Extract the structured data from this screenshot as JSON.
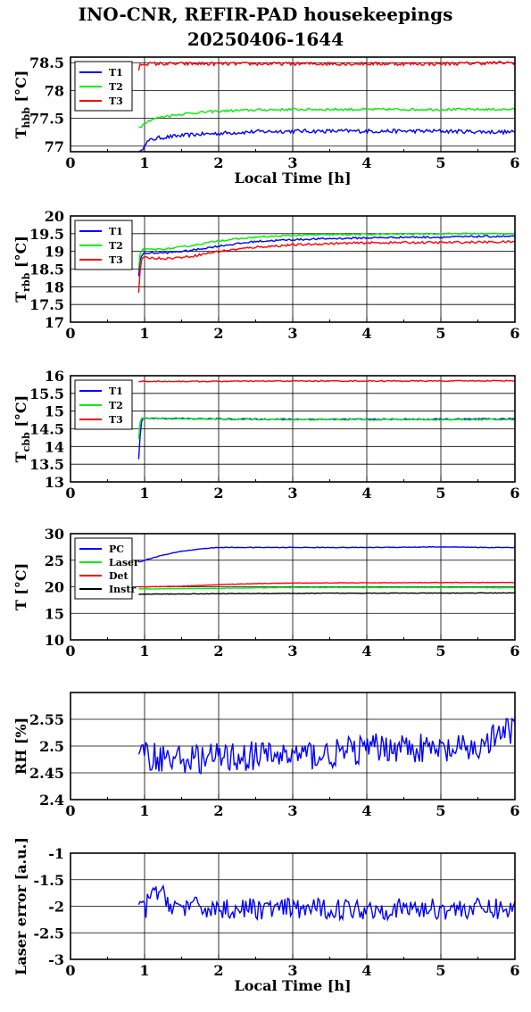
{
  "header": {
    "title_line1": "INO-CNR, REFIR-PAD housekeepings",
    "title_line2": "20250406-1644"
  },
  "chart_data": [
    {
      "type": "line",
      "ylabel": "T",
      "ylabel_sub": "hbb",
      "ylabel_unit": " [°C]",
      "xlabel": "Local Time [h]",
      "xlim": [
        0,
        6
      ],
      "ylim": [
        76.9,
        78.6
      ],
      "yticks": [
        77,
        77.5,
        78,
        78.5
      ],
      "ytick_labels": [
        "77",
        "77.5",
        "78",
        "78.5"
      ],
      "xticks": [
        0,
        1,
        2,
        3,
        4,
        5,
        6
      ],
      "xtick_labels": [
        "0",
        "1",
        "2",
        "3",
        "4",
        "5",
        "6"
      ],
      "grid": true,
      "legend_position": "top-left",
      "series": [
        {
          "name": "T1",
          "color": "#0000ff",
          "x": [
            0.92,
            0.96,
            1.0,
            1.1,
            1.2,
            1.35,
            1.5,
            1.7,
            2.0,
            2.5,
            3.0,
            3.5,
            4.0,
            4.5,
            5.0,
            5.5,
            6.0
          ],
          "y": [
            76.88,
            76.9,
            77.05,
            77.12,
            77.15,
            77.17,
            77.19,
            77.21,
            77.23,
            77.26,
            77.27,
            77.27,
            77.27,
            77.27,
            77.27,
            77.26,
            77.25
          ],
          "noise": 0.035
        },
        {
          "name": "T2",
          "color": "#00ee00",
          "x": [
            0.92,
            0.96,
            1.0,
            1.1,
            1.25,
            1.4,
            1.6,
            1.8,
            2.0,
            2.5,
            3.0,
            3.5,
            4.0,
            4.5,
            5.0,
            5.5,
            6.0
          ],
          "y": [
            77.35,
            77.36,
            77.42,
            77.48,
            77.53,
            77.56,
            77.59,
            77.61,
            77.63,
            77.65,
            77.66,
            77.66,
            77.66,
            77.66,
            77.66,
            77.66,
            77.66
          ],
          "noise": 0.022
        },
        {
          "name": "T3",
          "color": "#ff0000",
          "x": [
            0.92,
            0.94,
            0.97,
            1.0,
            2.0,
            3.0,
            4.0,
            5.0,
            6.0
          ],
          "y": [
            78.35,
            78.46,
            78.48,
            78.48,
            78.48,
            78.48,
            78.48,
            78.48,
            78.5
          ],
          "noise": 0.03
        }
      ]
    },
    {
      "type": "line",
      "ylabel": "T",
      "ylabel_sub": "rbb",
      "ylabel_unit": " [°C]",
      "xlabel": "",
      "xlim": [
        0,
        6
      ],
      "ylim": [
        17,
        20
      ],
      "yticks": [
        17,
        17.5,
        18,
        18.5,
        19,
        19.5,
        20
      ],
      "ytick_labels": [
        "17",
        "17.5",
        "18",
        "18.5",
        "19",
        "19.5",
        "20"
      ],
      "xticks": [
        0,
        1,
        2,
        3,
        4,
        5,
        6
      ],
      "xtick_labels": [
        "0",
        "1",
        "2",
        "3",
        "4",
        "5",
        "6"
      ],
      "grid": true,
      "legend_position": "top-left",
      "series": [
        {
          "name": "T1",
          "color": "#0000ff",
          "x": [
            0.92,
            0.94,
            0.97,
            1.0,
            1.3,
            1.6,
            2.0,
            2.5,
            3.0,
            3.5,
            4.0,
            4.5,
            5.0,
            5.5,
            6.0
          ],
          "y": [
            18.3,
            18.75,
            18.92,
            18.95,
            18.96,
            19.02,
            19.15,
            19.28,
            19.33,
            19.36,
            19.38,
            19.4,
            19.4,
            19.42,
            19.42
          ],
          "noise": 0.025
        },
        {
          "name": "T2",
          "color": "#00ee00",
          "x": [
            0.92,
            0.94,
            0.97,
            1.0,
            1.3,
            1.6,
            2.0,
            2.5,
            3.0,
            3.5,
            4.0,
            4.5,
            5.0,
            5.5,
            6.0
          ],
          "y": [
            18.5,
            18.95,
            19.05,
            19.05,
            19.07,
            19.15,
            19.3,
            19.4,
            19.45,
            19.47,
            19.48,
            19.49,
            19.5,
            19.5,
            19.5
          ],
          "noise": 0.022
        },
        {
          "name": "T3",
          "color": "#ff0000",
          "x": [
            0.92,
            0.93,
            0.95,
            0.97,
            1.0,
            1.3,
            1.6,
            2.0,
            2.5,
            3.0,
            3.5,
            4.0,
            4.5,
            5.0,
            5.5,
            6.0
          ],
          "y": [
            17.8,
            18.25,
            18.7,
            18.8,
            18.82,
            18.8,
            18.85,
            19.0,
            19.12,
            19.18,
            19.22,
            19.24,
            19.25,
            19.25,
            19.26,
            19.27
          ],
          "noise": 0.03
        }
      ]
    },
    {
      "type": "line",
      "ylabel": "T",
      "ylabel_sub": "cbb",
      "ylabel_unit": " [°C]",
      "xlabel": "",
      "xlim": [
        0,
        6
      ],
      "ylim": [
        13,
        16
      ],
      "yticks": [
        13,
        13.5,
        14,
        14.5,
        15,
        15.5,
        16
      ],
      "ytick_labels": [
        "13",
        "13.5",
        "14",
        "14.5",
        "15",
        "15.5",
        "16"
      ],
      "xticks": [
        0,
        1,
        2,
        3,
        4,
        5,
        6
      ],
      "xtick_labels": [
        "0",
        "1",
        "2",
        "3",
        "4",
        "5",
        "6"
      ],
      "grid": true,
      "legend_position": "top-left",
      "series": [
        {
          "name": "T1",
          "color": "#0000ff",
          "x": [
            0.92,
            0.93,
            0.94,
            0.95,
            0.97,
            1.0,
            2.0,
            3.0,
            4.0,
            5.0,
            6.0
          ],
          "y": [
            13.65,
            13.9,
            14.3,
            14.6,
            14.78,
            14.8,
            14.78,
            14.77,
            14.77,
            14.77,
            14.78
          ],
          "noise": 0.018
        },
        {
          "name": "T2",
          "color": "#00ee00",
          "x": [
            0.92,
            0.93,
            0.95,
            0.97,
            1.0,
            2.0,
            3.0,
            4.0,
            5.0,
            6.0
          ],
          "y": [
            14.2,
            14.6,
            14.78,
            14.8,
            14.8,
            14.77,
            14.76,
            14.76,
            14.76,
            14.76
          ],
          "noise": 0.018
        },
        {
          "name": "T3",
          "color": "#ff0000",
          "x": [
            0.92,
            1.0,
            2.0,
            3.0,
            4.0,
            5.0,
            6.0
          ],
          "y": [
            15.84,
            15.84,
            15.84,
            15.85,
            15.85,
            15.85,
            15.86
          ],
          "noise": 0.015
        }
      ]
    },
    {
      "type": "line",
      "ylabel": "T",
      "ylabel_sub": "",
      "ylabel_unit": " [°C]",
      "xlabel": "",
      "xlim": [
        0,
        6
      ],
      "ylim": [
        10,
        30
      ],
      "yticks": [
        10,
        15,
        20,
        25,
        30
      ],
      "ytick_labels": [
        "10",
        "15",
        "20",
        "25",
        "30"
      ],
      "xticks": [
        0,
        1,
        2,
        3,
        4,
        5,
        6
      ],
      "xtick_labels": [
        "0",
        "1",
        "2",
        "3",
        "4",
        "5",
        "6"
      ],
      "grid": true,
      "legend_position": "top-left",
      "series": [
        {
          "name": "PC",
          "color": "#0000ff",
          "x": [
            0.92,
            1.0,
            1.2,
            1.5,
            1.8,
            2.0,
            2.5,
            3.0,
            4.0,
            5.0,
            5.5,
            6.0
          ],
          "y": [
            24.6,
            25.0,
            25.8,
            26.7,
            27.2,
            27.4,
            27.4,
            27.4,
            27.4,
            27.5,
            27.4,
            27.4
          ],
          "noise": 0.06
        },
        {
          "name": "Laser",
          "color": "#00ee00",
          "x": [
            0.92,
            1.0,
            1.5,
            2.0,
            2.5,
            3.0,
            4.0,
            5.0,
            6.0
          ],
          "y": [
            19.6,
            19.6,
            19.65,
            19.7,
            19.8,
            19.85,
            19.85,
            19.85,
            19.8
          ],
          "noise": 0.05
        },
        {
          "name": "Det",
          "color": "#ff0000",
          "x": [
            0.92,
            1.0,
            1.5,
            2.0,
            2.5,
            3.0,
            4.0,
            5.0,
            6.0
          ],
          "y": [
            20.0,
            20.0,
            20.1,
            20.4,
            20.6,
            20.7,
            20.75,
            20.78,
            20.8
          ],
          "noise": 0.04
        },
        {
          "name": "Instr",
          "color": "#000000",
          "x": [
            0.92,
            1.0,
            1.5,
            2.0,
            3.0,
            4.0,
            5.0,
            6.0
          ],
          "y": [
            18.6,
            18.6,
            18.65,
            18.7,
            18.75,
            18.8,
            18.8,
            18.85
          ],
          "noise": 0.05
        }
      ]
    },
    {
      "type": "line",
      "ylabel": "RH [%]",
      "ylabel_sub": "",
      "ylabel_unit": "",
      "xlabel": "",
      "xlim": [
        0,
        6
      ],
      "ylim": [
        2.4,
        2.6
      ],
      "yticks": [
        2.4,
        2.45,
        2.5,
        2.55
      ],
      "ytick_labels": [
        "2.4",
        "2.45",
        "2.5",
        "2.55"
      ],
      "xticks": [
        0,
        1,
        2,
        3,
        4,
        5,
        6
      ],
      "xtick_labels": [
        "0",
        "1",
        "2",
        "3",
        "4",
        "5",
        "6"
      ],
      "grid": true,
      "legend_position": "none",
      "series": [
        {
          "name": "",
          "color": "#0000ff",
          "x": [
            0.92,
            1.5,
            2.5,
            3.5,
            4.0,
            4.5,
            5.0,
            5.5,
            5.9,
            6.0
          ],
          "y": [
            2.485,
            2.475,
            2.482,
            2.484,
            2.495,
            2.5,
            2.49,
            2.495,
            2.53,
            2.525
          ],
          "noise": 0.028
        }
      ]
    },
    {
      "type": "line",
      "ylabel": "Laser error [a.u.]",
      "ylabel_sub": "",
      "ylabel_unit": "",
      "xlabel": "Local Time [h]",
      "xlim": [
        0,
        6
      ],
      "ylim": [
        -3,
        -1
      ],
      "yticks": [
        -3,
        -2.5,
        -2,
        -1.5,
        -1
      ],
      "ytick_labels": [
        "-3",
        "-2.5",
        "-2",
        "-1.5",
        "-1"
      ],
      "xticks": [
        0,
        1,
        2,
        3,
        4,
        5,
        6
      ],
      "xtick_labels": [
        "0",
        "1",
        "2",
        "3",
        "4",
        "5",
        "6"
      ],
      "grid": true,
      "legend_position": "none",
      "series": [
        {
          "name": "",
          "color": "#0000ff",
          "x": [
            0.92,
            1.0,
            1.1,
            1.2,
            1.4,
            2.0,
            3.0,
            4.0,
            5.0,
            6.0
          ],
          "y": [
            -1.9,
            -2.1,
            -1.7,
            -1.75,
            -2.0,
            -2.05,
            -2.05,
            -2.05,
            -2.05,
            -2.05
          ],
          "noise": 0.2
        }
      ]
    }
  ]
}
